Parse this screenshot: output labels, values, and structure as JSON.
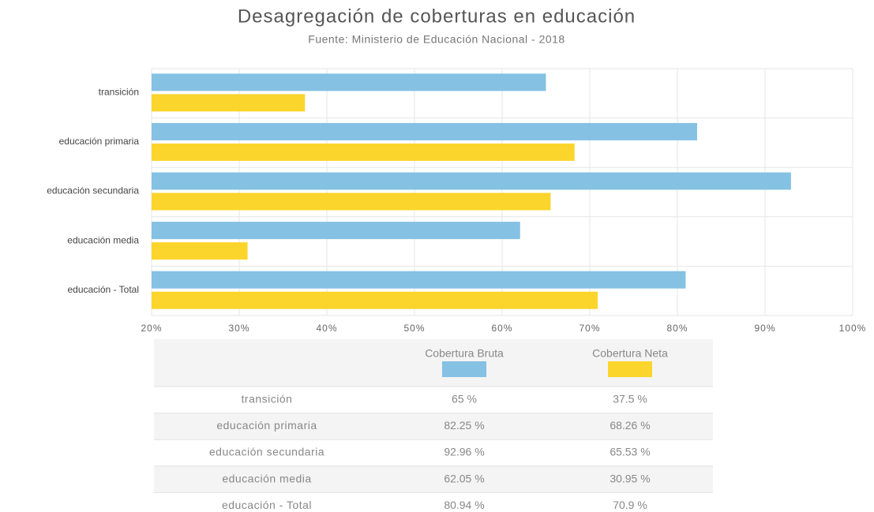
{
  "chart_data": {
    "type": "hbar",
    "title": "Desagregación de coberturas en educación",
    "subtitle": "Fuente: Ministerio de Educación Nacional - 2018",
    "categories": [
      "transición",
      "educación primaria",
      "educación secundaria",
      "educación media",
      "educación - Total"
    ],
    "series": [
      {
        "name": "Cobertura Bruta",
        "color": "#85c1e3",
        "values": [
          65,
          82.25,
          92.96,
          62.05,
          80.94
        ],
        "value_labels": [
          "65 %",
          "82.25 %",
          "92.96 %",
          "62.05 %",
          "80.94 %"
        ]
      },
      {
        "name": "Cobertura Neta",
        "color": "#fcd52c",
        "values": [
          37.5,
          68.26,
          65.53,
          30.95,
          70.9
        ],
        "value_labels": [
          "37.5 %",
          "68.26 %",
          "65.53 %",
          "30.95 %",
          "70.9 %"
        ]
      }
    ],
    "xlim": [
      20,
      100
    ],
    "xticks": [
      {
        "value": 20,
        "label": "20%"
      },
      {
        "value": 30,
        "label": "30%"
      },
      {
        "value": 40,
        "label": "40%"
      },
      {
        "value": 50,
        "label": "50%"
      },
      {
        "value": 60,
        "label": "60%"
      },
      {
        "value": 70,
        "label": "70%"
      },
      {
        "value": 80,
        "label": "80%"
      },
      {
        "value": 90,
        "label": "90%"
      },
      {
        "value": 100,
        "label": "100%"
      }
    ],
    "grid": true
  }
}
